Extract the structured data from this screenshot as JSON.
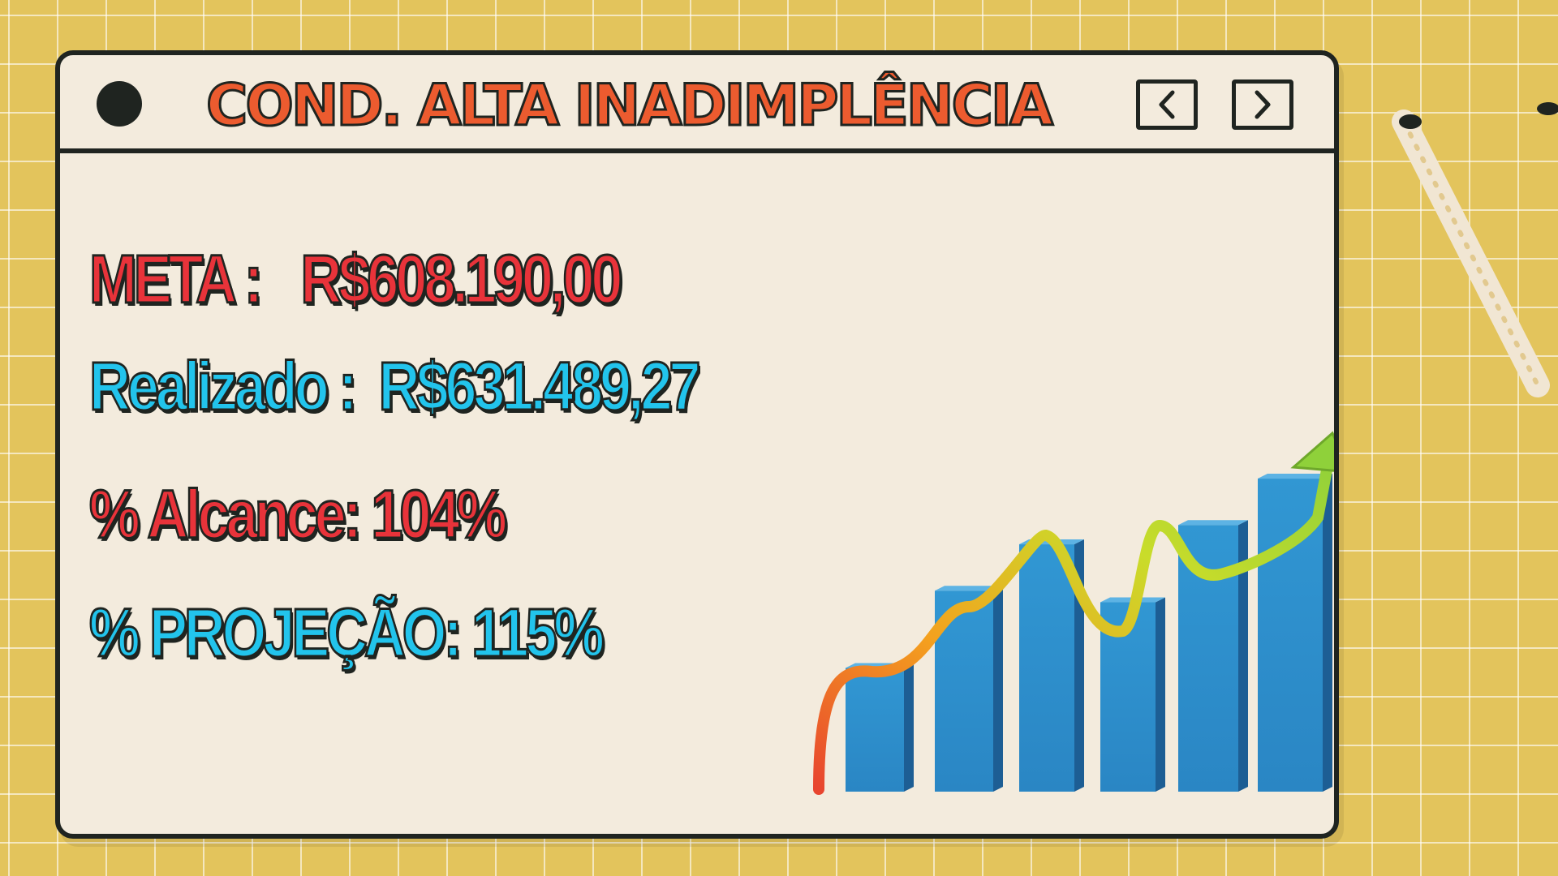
{
  "window": {
    "title": "COND. ALTA INADIMPLÊNCIA",
    "prev_icon": "chevron-left-icon",
    "next_icon": "chevron-right-icon"
  },
  "stats": {
    "meta_label": "META :",
    "meta_value": "R$608.190,00",
    "realizado_label": "Realizado :",
    "realizado_value": "R$631.489,27",
    "alcance_label": "% Alcance:",
    "alcance_value": "104%",
    "projecao_label": "% PROJEÇÃO:",
    "projecao_value": "115%"
  },
  "chart_data": {
    "type": "bar",
    "categories": [
      "",
      "",
      "",
      "",
      "",
      ""
    ],
    "values": [
      32,
      52,
      64,
      49,
      69,
      81
    ],
    "trend": "up",
    "bar_color": "#2a86c4",
    "trend_colors": [
      "#e8452f",
      "#f4a11e",
      "#c9dc2a",
      "#8fd13a"
    ]
  },
  "colors": {
    "background": "#e3c45c",
    "window": "#f3ebdd",
    "outline": "#1f2420",
    "title": "#ec5b2f",
    "red_text": "#e8333a",
    "blue_text": "#22c4ec"
  }
}
